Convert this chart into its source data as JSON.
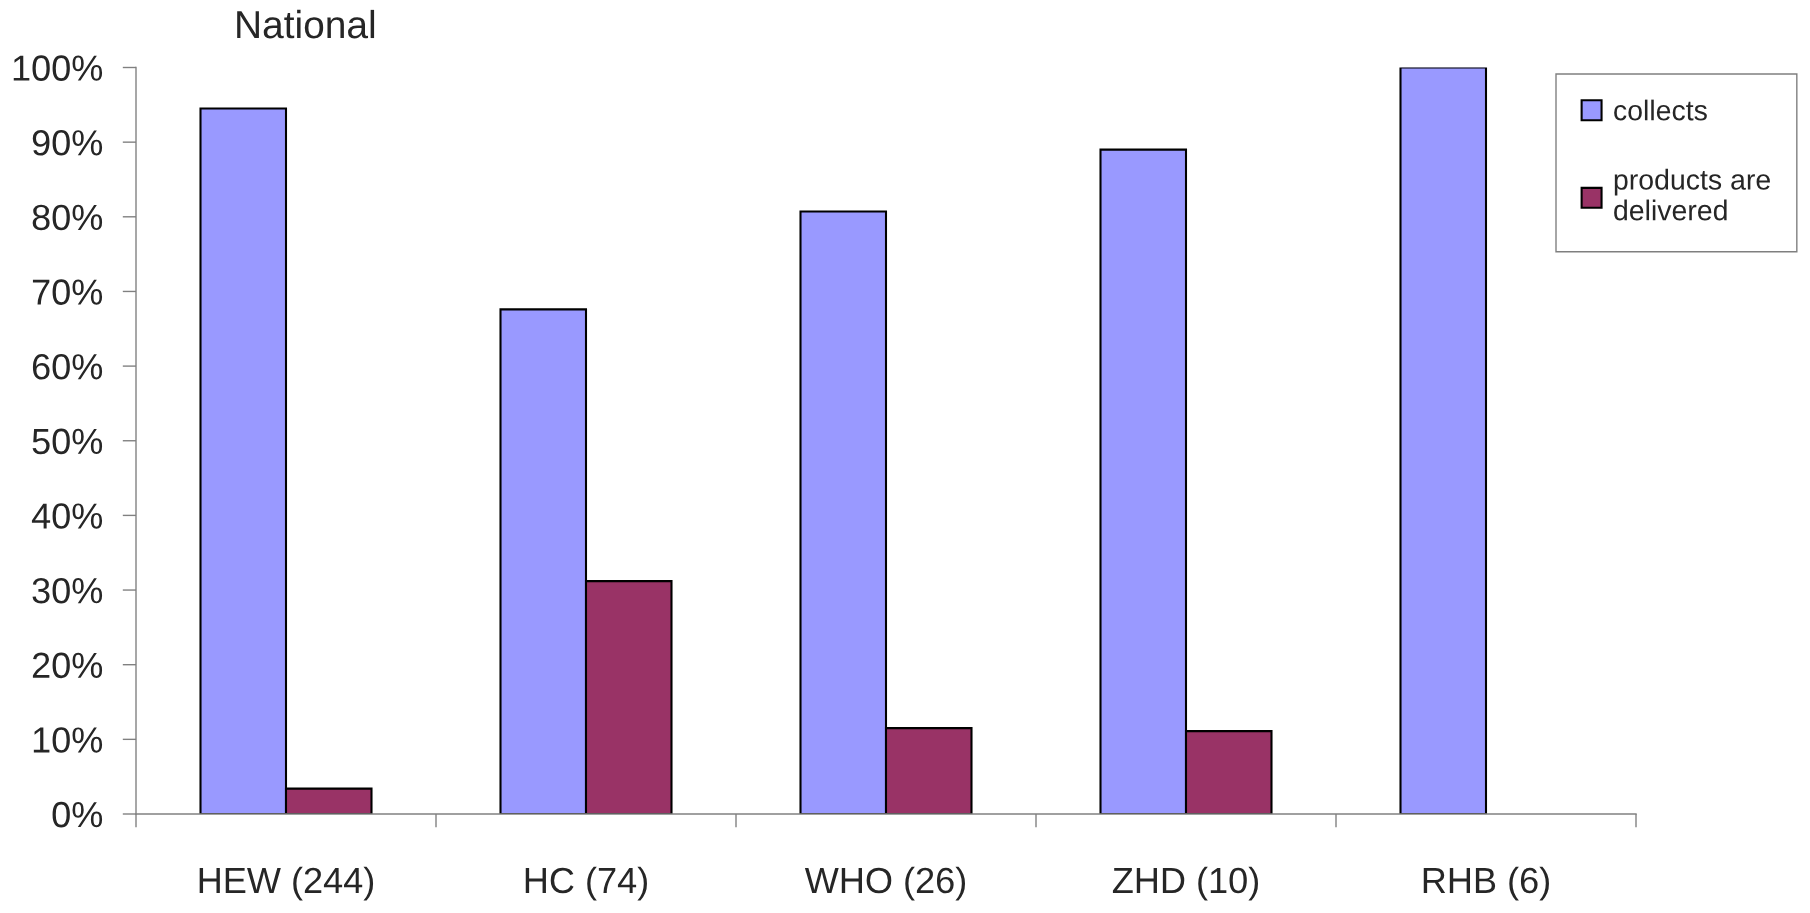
{
  "chart_data": {
    "type": "bar",
    "title": "National",
    "categories": [
      "HEW (244)",
      "HC (74)",
      "WHO (26)",
      "ZHD (10)",
      "RHB (6)"
    ],
    "series": [
      {
        "name": "collects",
        "color": "#9999ff",
        "values": [
          94.5,
          67.6,
          80.7,
          89.0,
          100
        ]
      },
      {
        "name": "products are\ndelivered",
        "color": "#993366",
        "values": [
          3.4,
          31.2,
          11.5,
          11.1,
          null
        ]
      }
    ],
    "ylim": [
      0,
      100
    ],
    "yticks": [
      {
        "value": 0,
        "label": "0%"
      },
      {
        "value": 10,
        "label": "10%"
      },
      {
        "value": 20,
        "label": "20%"
      },
      {
        "value": 30,
        "label": "30%"
      },
      {
        "value": 40,
        "label": "40%"
      },
      {
        "value": 50,
        "label": "50%"
      },
      {
        "value": 60,
        "label": "60%"
      },
      {
        "value": 70,
        "label": "70%"
      },
      {
        "value": 80,
        "label": "80%"
      },
      {
        "value": 90,
        "label": "90%"
      },
      {
        "value": 100,
        "label": "100%"
      }
    ],
    "legend": "top right"
  }
}
